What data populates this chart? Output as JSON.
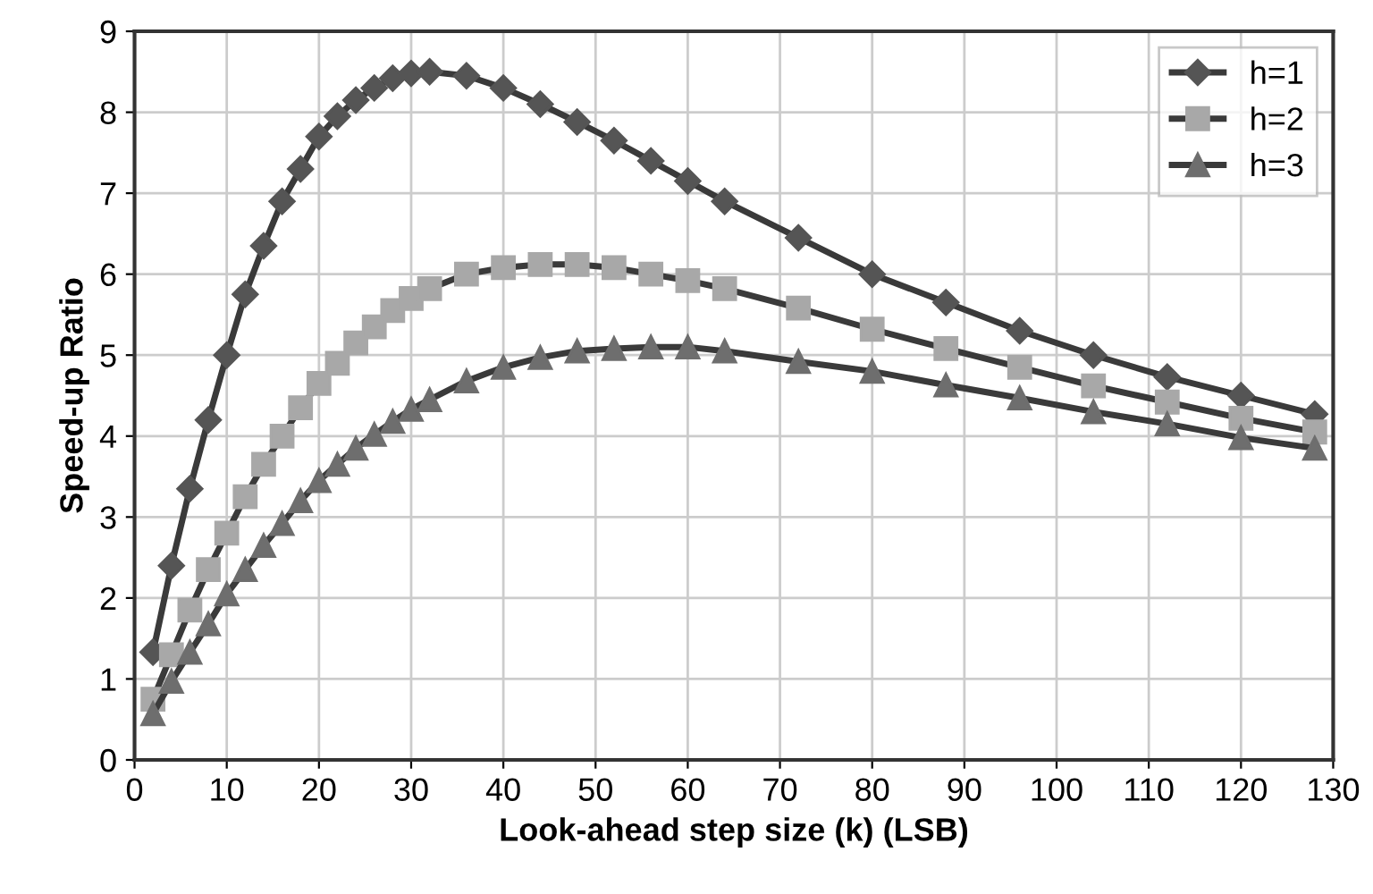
{
  "chart_data": {
    "type": "line",
    "xlabel": "Look-ahead step size (k) (LSB)",
    "ylabel": "Speed-up Ratio",
    "x": [
      2,
      4,
      6,
      8,
      10,
      12,
      14,
      16,
      18,
      20,
      22,
      24,
      26,
      28,
      30,
      32,
      36,
      40,
      44,
      48,
      52,
      56,
      60,
      64,
      72,
      80,
      88,
      96,
      104,
      112,
      120,
      128
    ],
    "series": [
      {
        "name": "h=1",
        "color": "#555555",
        "marker": "diamond",
        "values": [
          1.33,
          2.4,
          3.35,
          4.2,
          5.0,
          5.75,
          6.35,
          6.9,
          7.3,
          7.7,
          7.95,
          8.15,
          8.3,
          8.42,
          8.48,
          8.5,
          8.45,
          8.3,
          8.1,
          7.88,
          7.65,
          7.4,
          7.15,
          6.9,
          6.45,
          6.0,
          5.65,
          5.3,
          5.0,
          4.73,
          4.5,
          4.27
        ]
      },
      {
        "name": "h=2",
        "color": "#a8a8a8",
        "marker": "square",
        "values": [
          0.75,
          1.3,
          1.85,
          2.35,
          2.8,
          3.25,
          3.65,
          4.0,
          4.35,
          4.65,
          4.9,
          5.15,
          5.35,
          5.55,
          5.7,
          5.82,
          6.0,
          6.08,
          6.12,
          6.12,
          6.08,
          6.0,
          5.92,
          5.82,
          5.58,
          5.32,
          5.08,
          4.85,
          4.62,
          4.42,
          4.22,
          4.05
        ]
      },
      {
        "name": "h=3",
        "color": "#6e6e6e",
        "marker": "triangle",
        "values": [
          0.57,
          0.97,
          1.33,
          1.68,
          2.05,
          2.35,
          2.65,
          2.92,
          3.2,
          3.45,
          3.65,
          3.85,
          4.02,
          4.18,
          4.33,
          4.45,
          4.68,
          4.85,
          4.97,
          5.05,
          5.08,
          5.1,
          5.1,
          5.05,
          4.92,
          4.8,
          4.63,
          4.47,
          4.3,
          4.15,
          3.98,
          3.85
        ]
      }
    ],
    "xlim": [
      0,
      130
    ],
    "xticks": [
      0,
      10,
      20,
      30,
      40,
      50,
      60,
      70,
      80,
      90,
      100,
      110,
      120,
      130
    ],
    "ylim": [
      0,
      9
    ],
    "yticks": [
      0,
      1,
      2,
      3,
      4,
      5,
      6,
      7,
      8,
      9
    ],
    "grid": true,
    "legend": "top right",
    "line_style": "solid"
  }
}
